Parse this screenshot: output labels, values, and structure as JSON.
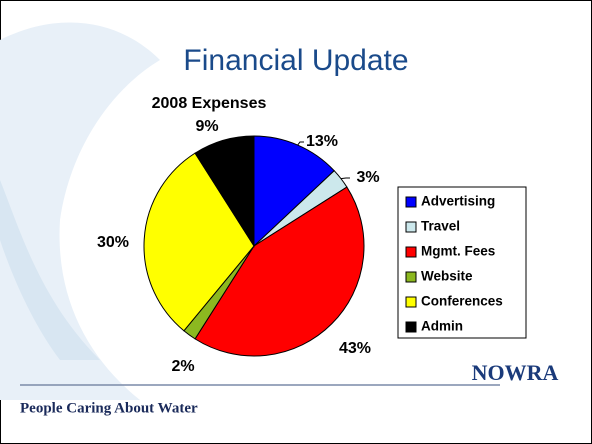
{
  "slide": {
    "title": "Financial Update",
    "footer": "People Caring About Water",
    "logo": "NOWRA"
  },
  "chart_data": {
    "type": "pie",
    "title": "2008 Expenses",
    "categories": [
      "Advertising",
      "Travel",
      "Mgmt. Fees",
      "Website",
      "Conferences",
      "Admin"
    ],
    "values": [
      13,
      3,
      43,
      2,
      30,
      9
    ],
    "value_labels": [
      "13%",
      "3%",
      "43%",
      "2%",
      "30%",
      "9%"
    ],
    "colors": [
      "#0000ff",
      "#cce8ec",
      "#ff0000",
      "#8cb820",
      "#ffff00",
      "#000000"
    ],
    "legend": "right"
  }
}
